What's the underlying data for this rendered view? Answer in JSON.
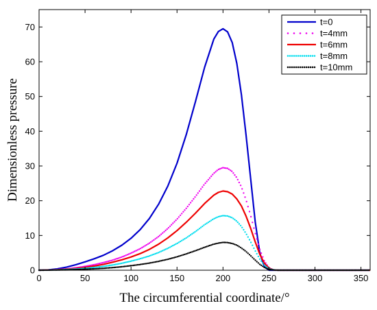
{
  "chart_data": {
    "type": "line",
    "title": "",
    "xlabel": "The circumferential coordinate/°",
    "ylabel": "Dimensionless pressure",
    "xlim": [
      0,
      360
    ],
    "ylim": [
      0,
      75
    ],
    "xticks": [
      0,
      50,
      100,
      150,
      200,
      250,
      300,
      350
    ],
    "yticks": [
      0,
      10,
      20,
      30,
      40,
      50,
      60,
      70
    ],
    "grid": false,
    "legend_position": "top-right",
    "x": [
      0,
      10,
      20,
      30,
      40,
      50,
      60,
      70,
      80,
      90,
      100,
      110,
      120,
      130,
      140,
      150,
      160,
      170,
      180,
      190,
      195,
      200,
      205,
      210,
      215,
      220,
      225,
      230,
      235,
      240,
      245,
      250,
      255,
      260,
      270,
      280,
      290,
      300,
      320,
      340,
      360
    ],
    "series": [
      {
        "name": "t=0",
        "color": "#0000cc",
        "style": "solid",
        "values": [
          0,
          0.1,
          0.4,
          0.9,
          1.6,
          2.4,
          3.3,
          4.3,
          5.6,
          7.2,
          9.2,
          11.7,
          14.9,
          19.0,
          24.2,
          30.8,
          39.0,
          48.5,
          58.4,
          66.5,
          68.7,
          69.5,
          68.6,
          65.5,
          59.5,
          50.5,
          39.0,
          26.5,
          14.0,
          5.0,
          1.0,
          0,
          0,
          0,
          0,
          0,
          0,
          0,
          0,
          0,
          0
        ]
      },
      {
        "name": "t=4mm",
        "color": "#ee00ee",
        "style": "dotted",
        "values": [
          0,
          0.05,
          0.2,
          0.4,
          0.7,
          1.1,
          1.6,
          2.2,
          2.9,
          3.8,
          4.9,
          6.2,
          7.8,
          9.7,
          12.0,
          14.7,
          17.8,
          21.2,
          24.8,
          27.9,
          29.0,
          29.5,
          29.3,
          28.4,
          26.6,
          24.0,
          20.3,
          15.8,
          10.7,
          6.0,
          2.6,
          0.7,
          0.1,
          0,
          0,
          0,
          0,
          0,
          0,
          0,
          0
        ]
      },
      {
        "name": "t=6mm",
        "color": "#ee0000",
        "style": "solid",
        "values": [
          0,
          0.05,
          0.15,
          0.3,
          0.5,
          0.8,
          1.2,
          1.7,
          2.3,
          3.0,
          3.8,
          4.8,
          6.0,
          7.5,
          9.3,
          11.4,
          13.8,
          16.4,
          19.2,
          21.6,
          22.4,
          22.8,
          22.6,
          21.9,
          20.5,
          18.5,
          15.6,
          12.1,
          8.2,
          4.6,
          2.0,
          0.6,
          0.1,
          0,
          0,
          0,
          0,
          0,
          0,
          0,
          0
        ]
      },
      {
        "name": "t=8mm",
        "color": "#00ddee",
        "style": "dotted",
        "values": [
          0,
          0.03,
          0.1,
          0.2,
          0.35,
          0.55,
          0.8,
          1.1,
          1.5,
          2.0,
          2.6,
          3.3,
          4.1,
          5.1,
          6.3,
          7.7,
          9.3,
          11.1,
          13.1,
          14.8,
          15.4,
          15.7,
          15.6,
          15.1,
          14.1,
          12.6,
          10.6,
          8.2,
          5.6,
          3.2,
          1.4,
          0.4,
          0.1,
          0,
          0,
          0,
          0,
          0,
          0,
          0,
          0
        ]
      },
      {
        "name": "t=10mm",
        "color": "#000000",
        "style": "dotted",
        "values": [
          0,
          0.02,
          0.05,
          0.1,
          0.18,
          0.28,
          0.4,
          0.55,
          0.75,
          1.0,
          1.3,
          1.65,
          2.05,
          2.55,
          3.15,
          3.85,
          4.7,
          5.6,
          6.6,
          7.5,
          7.8,
          8.0,
          7.95,
          7.7,
          7.2,
          6.4,
          5.4,
          4.2,
          2.9,
          1.7,
          0.8,
          0.25,
          0.05,
          0,
          0,
          0,
          0,
          0,
          0,
          0,
          0
        ]
      }
    ]
  }
}
